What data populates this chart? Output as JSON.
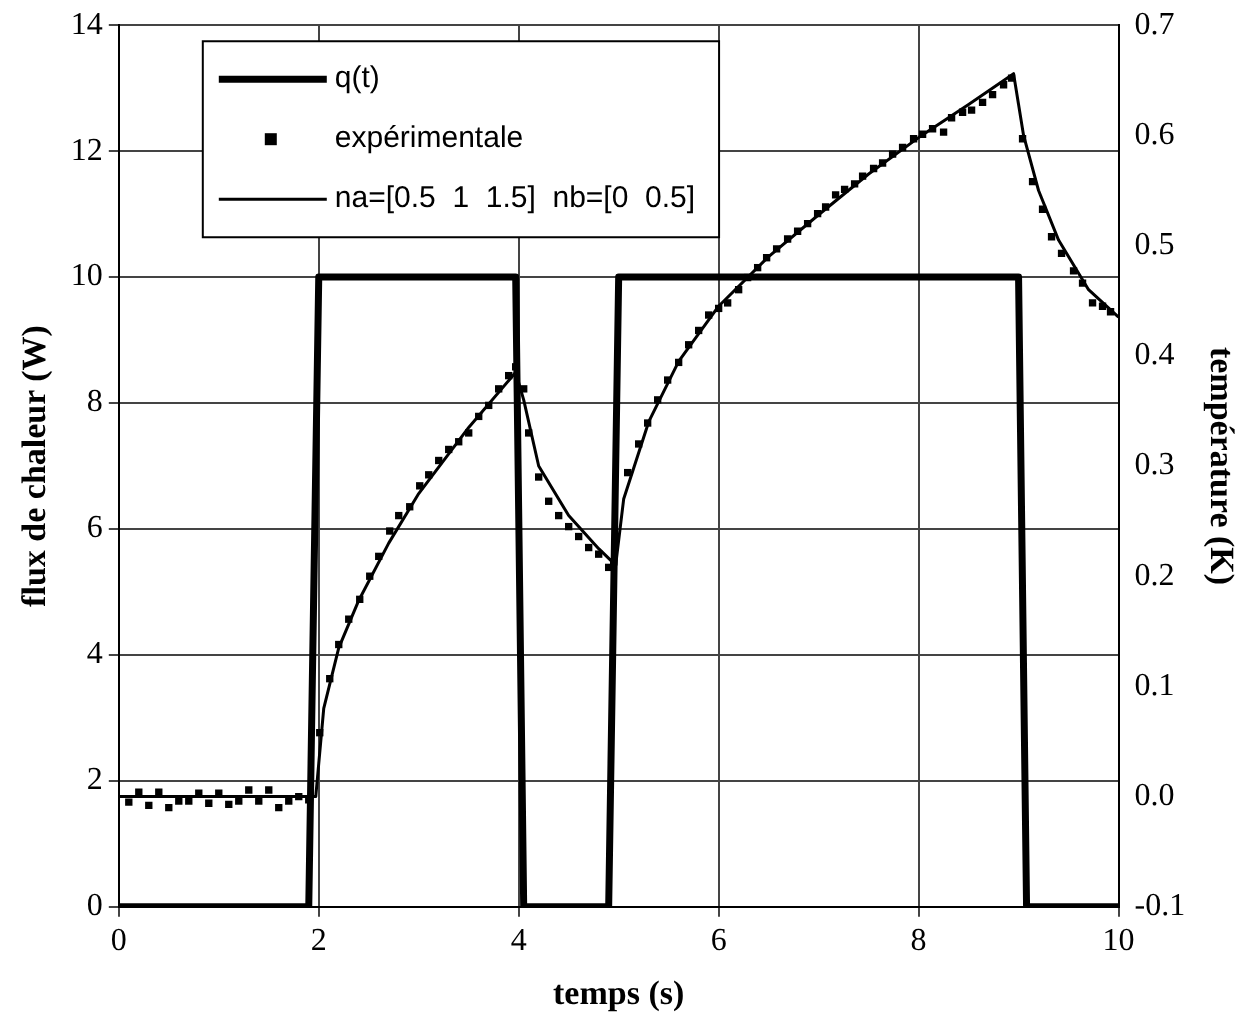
{
  "chart_data": {
    "type": "line",
    "xlabel": "temps (s)",
    "ylabel": "flux de chaleur (W)",
    "y2label": "température (K)",
    "xlim": [
      0,
      10
    ],
    "xticks": [
      0,
      2,
      4,
      6,
      8,
      10
    ],
    "ylim": [
      0,
      14
    ],
    "yticks": [
      0,
      2,
      4,
      6,
      8,
      10,
      12,
      14
    ],
    "y2lim": [
      -0.1,
      0.7
    ],
    "y2ticks": [
      -0.1,
      {
        "value": 0,
        "label": "0.0"
      },
      0.1,
      0.2,
      0.3,
      0.4,
      0.5,
      0.6,
      0.7
    ],
    "grid": true,
    "legend": "top left",
    "series": [
      {
        "name": "q(t)",
        "marker": "none",
        "line_style": "solid",
        "color": "#000000",
        "x": [
          0,
          1.9,
          2.0,
          3.97,
          4.05,
          4.9,
          5.0,
          9.0,
          9.08,
          10
        ],
        "values": [
          0,
          0,
          10,
          10,
          0,
          0,
          10,
          10,
          0,
          0
        ]
      },
      {
        "name": "expérimentale",
        "type": "scatter",
        "marker": "square",
        "axis": "y2",
        "color": "#000000",
        "x": [
          0.1,
          0.2,
          0.3,
          0.4,
          0.5,
          0.6,
          0.7,
          0.8,
          0.9,
          1.0,
          1.1,
          1.2,
          1.3,
          1.4,
          1.5,
          1.6,
          1.7,
          1.8,
          1.9,
          2.01,
          2.11,
          2.2,
          2.3,
          2.41,
          2.51,
          2.6,
          2.71,
          2.8,
          2.91,
          3.01,
          3.1,
          3.2,
          3.3,
          3.4,
          3.5,
          3.6,
          3.7,
          3.8,
          3.9,
          3.97,
          4.05,
          4.1,
          4.2,
          4.3,
          4.4,
          4.5,
          4.6,
          4.7,
          4.8,
          4.9,
          4.95,
          5.09,
          5.2,
          5.29,
          5.39,
          5.49,
          5.6,
          5.7,
          5.8,
          5.9,
          6.0,
          6.09,
          6.2,
          6.29,
          6.39,
          6.48,
          6.58,
          6.69,
          6.79,
          6.89,
          6.99,
          7.07,
          7.17,
          7.26,
          7.36,
          7.44,
          7.55,
          7.64,
          7.74,
          7.84,
          7.95,
          8.04,
          8.14,
          8.25,
          8.33,
          8.44,
          8.53,
          8.64,
          8.74,
          8.85,
          8.93,
          9.04,
          9.14,
          9.24,
          9.33,
          9.43,
          9.55,
          9.64,
          9.74,
          9.84,
          9.92
        ],
        "values": [
          -0.005,
          0.004,
          -0.008,
          0.004,
          -0.01,
          -0.004,
          -0.004,
          0.003,
          -0.006,
          0.003,
          -0.007,
          -0.004,
          0.006,
          -0.004,
          0.006,
          -0.01,
          -0.004,
          0.0,
          -0.003,
          0.058,
          0.107,
          0.138,
          0.161,
          0.179,
          0.2,
          0.218,
          0.241,
          0.255,
          0.263,
          0.282,
          0.292,
          0.305,
          0.315,
          0.322,
          0.33,
          0.345,
          0.355,
          0.37,
          0.382,
          0.39,
          0.37,
          0.33,
          0.29,
          0.268,
          0.255,
          0.245,
          0.236,
          0.226,
          0.22,
          0.208,
          0.213,
          0.294,
          0.32,
          0.339,
          0.36,
          0.378,
          0.394,
          0.41,
          0.423,
          0.437,
          0.443,
          0.448,
          0.46,
          0.471,
          0.48,
          0.489,
          0.497,
          0.506,
          0.513,
          0.52,
          0.529,
          0.535,
          0.546,
          0.551,
          0.556,
          0.563,
          0.57,
          0.575,
          0.583,
          0.589,
          0.597,
          0.601,
          0.606,
          0.603,
          0.616,
          0.621,
          0.623,
          0.63,
          0.637,
          0.646,
          0.652,
          0.597,
          0.558,
          0.533,
          0.508,
          0.493,
          0.477,
          0.466,
          0.448,
          0.445,
          0.44
        ]
      },
      {
        "name": "na=[0.5  1  1.5]  nb=[0  0.5]",
        "marker": "none",
        "line_style": "solid",
        "axis": "y2",
        "color": "#000000",
        "x": [
          0,
          1.9,
          1.97,
          2.05,
          2.2,
          2.4,
          2.7,
          3.0,
          3.5,
          3.97,
          4.05,
          4.2,
          4.5,
          4.8,
          4.97,
          5.05,
          5.3,
          5.6,
          6.0,
          6.5,
          7.0,
          7.5,
          8.0,
          8.5,
          8.95,
          9.05,
          9.2,
          9.4,
          9.7,
          10
        ],
        "values": [
          0,
          0,
          0,
          0.08,
          0.135,
          0.178,
          0.23,
          0.275,
          0.335,
          0.385,
          0.36,
          0.3,
          0.255,
          0.225,
          0.21,
          0.27,
          0.34,
          0.395,
          0.445,
          0.49,
          0.528,
          0.565,
          0.598,
          0.628,
          0.656,
          0.6,
          0.55,
          0.505,
          0.46,
          0.435
        ]
      }
    ]
  }
}
